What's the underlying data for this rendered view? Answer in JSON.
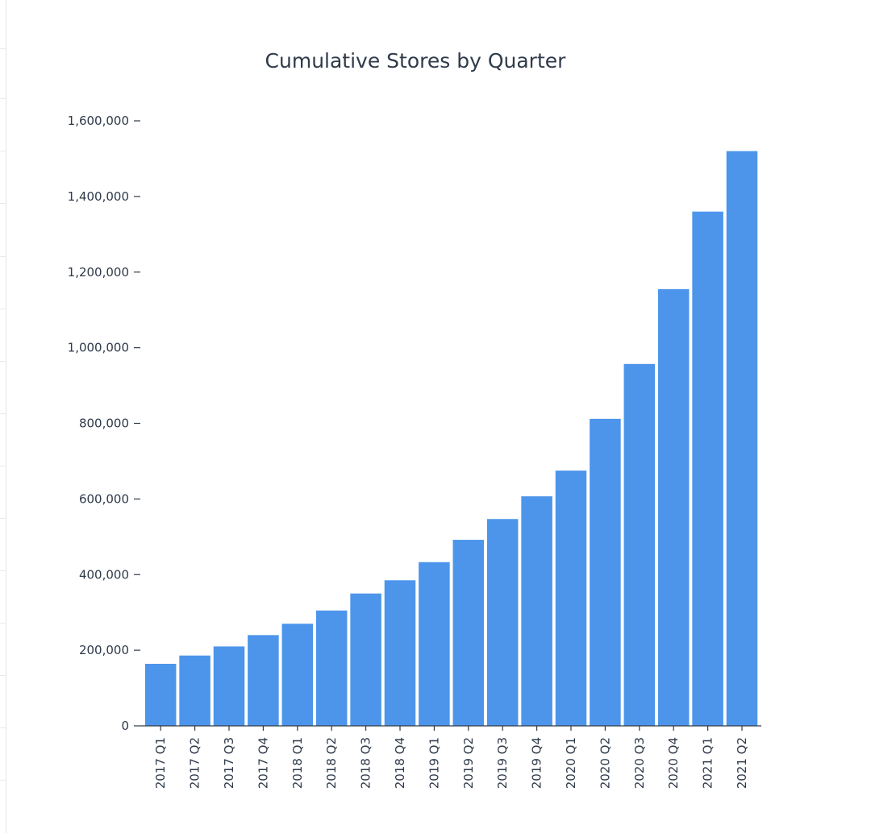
{
  "chart_data": {
    "type": "bar",
    "title": "Cumulative Stores by Quarter",
    "xlabel": "",
    "ylabel": "",
    "ylim": [
      0,
      1600000
    ],
    "yticks": [
      0,
      200000,
      400000,
      600000,
      800000,
      1000000,
      1200000,
      1400000,
      1600000
    ],
    "ytick_labels": [
      "0",
      "200,000",
      "400,000",
      "600,000",
      "800,000",
      "1,000,000",
      "1,200,000",
      "1,400,000",
      "1,600,000"
    ],
    "categories": [
      "2017 Q1",
      "2017 Q2",
      "2017 Q3",
      "2017 Q4",
      "2018 Q1",
      "2018 Q2",
      "2018 Q3",
      "2018 Q4",
      "2019 Q1",
      "2019 Q2",
      "2019 Q3",
      "2019 Q4",
      "2020 Q1",
      "2020 Q2",
      "2020 Q3",
      "2020 Q4",
      "2021 Q1",
      "2021 Q2"
    ],
    "values": [
      164000,
      186000,
      210000,
      240000,
      270000,
      305000,
      350000,
      385000,
      433000,
      492000,
      547000,
      607000,
      675000,
      812000,
      957000,
      1155000,
      1360000,
      1520000
    ],
    "grid": false,
    "legend": "none",
    "colors": {
      "bar": "#4c95eb",
      "text": "#2f3a4a",
      "axis": "#2f3a4a"
    }
  }
}
